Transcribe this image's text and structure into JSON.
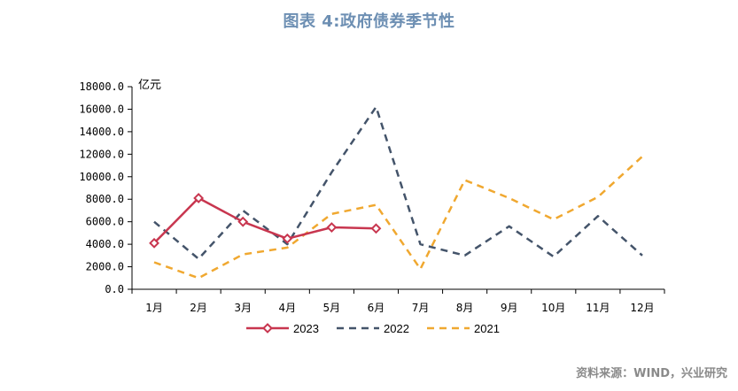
{
  "title": "图表 4:政府债券季节性",
  "source": "资料来源：WIND，兴业研究",
  "chart_data": {
    "type": "line",
    "unit": "亿元",
    "categories": [
      "1月",
      "2月",
      "3月",
      "4月",
      "5月",
      "6月",
      "7月",
      "8月",
      "9月",
      "10月",
      "11月",
      "12月"
    ],
    "ylim": [
      0,
      18000
    ],
    "yticks": [
      "0.0",
      "2000.0",
      "4000.0",
      "6000.0",
      "8000.0",
      "10000.0",
      "12000.0",
      "14000.0",
      "16000.0",
      "18000.0"
    ],
    "legend_position": "bottom",
    "series": [
      {
        "name": "2023",
        "color": "#c8364f",
        "style": "solid-diamond",
        "values": [
          4100,
          8100,
          6000,
          4500,
          5500,
          5400,
          null,
          null,
          null,
          null,
          null,
          null
        ]
      },
      {
        "name": "2022",
        "color": "#44546a",
        "style": "dashed",
        "values": [
          6000,
          2700,
          7000,
          4000,
          10400,
          16200,
          4000,
          3000,
          5600,
          2900,
          6500,
          3000
        ]
      },
      {
        "name": "2021",
        "color": "#f0a830",
        "style": "dashed",
        "values": [
          2400,
          1000,
          3100,
          3700,
          6700,
          7500,
          1800,
          9700,
          8100,
          6200,
          8200,
          11800
        ]
      }
    ]
  }
}
